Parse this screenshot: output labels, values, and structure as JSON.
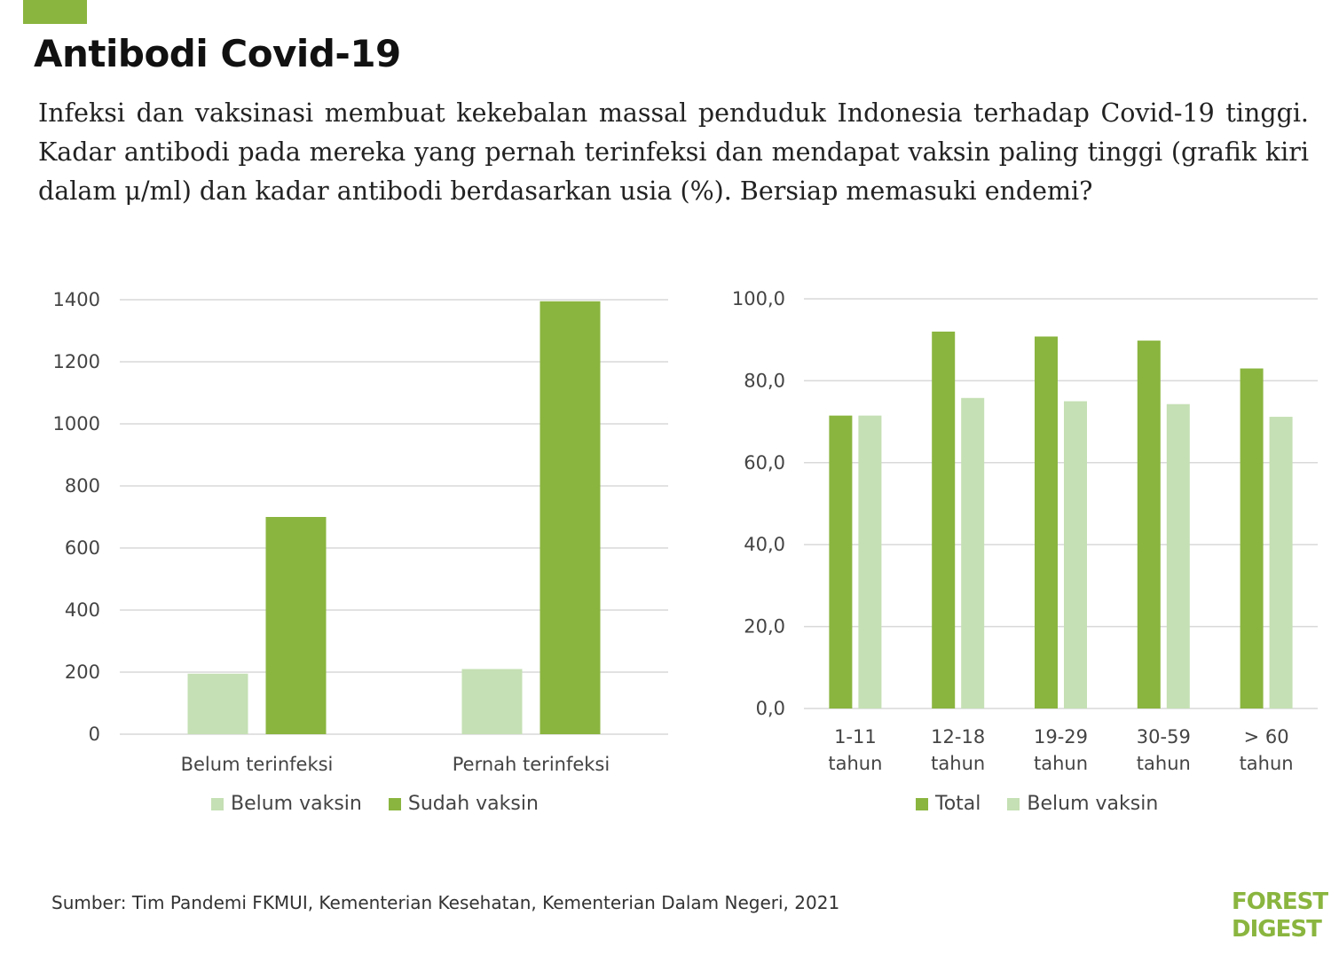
{
  "colors": {
    "accent": "#8ab53f",
    "light": "#c5e0b4",
    "dark": "#8ab53f",
    "grid": "#d9d9d9"
  },
  "header": {
    "title": "Antibodi Covid-19",
    "intro": "Infeksi dan vaksinasi membuat kekebalan massal penduduk Indonesia terhadap Covid-19 tinggi. Kadar antibodi pada mereka yang pernah terinfeksi dan mendapat vaksin paling tinggi (grafik kiri dalam μ/ml) dan kadar antibodi berdasarkan usia (%). Bersiap memasuki endemi?"
  },
  "chart_data": [
    {
      "type": "bar",
      "categories": [
        "Belum terinfeksi",
        "Pernah terinfeksi"
      ],
      "series": [
        {
          "name": "Belum vaksin",
          "color": "#c5e0b4",
          "values": [
            195,
            210
          ]
        },
        {
          "name": "Sudah vaksin",
          "color": "#8ab53f",
          "values": [
            700,
            1395
          ]
        }
      ],
      "ylim": [
        0,
        1400
      ],
      "yticks": [
        "0",
        "200",
        "400",
        "600",
        "800",
        "1000",
        "1200",
        "1400"
      ],
      "grid": true,
      "legend_position": "bottom"
    },
    {
      "type": "bar",
      "categories": [
        [
          "1-11",
          "tahun"
        ],
        [
          "12-18",
          "tahun"
        ],
        [
          "19-29",
          "tahun"
        ],
        [
          "30-59",
          "tahun"
        ],
        [
          "> 60",
          "tahun"
        ]
      ],
      "series": [
        {
          "name": "Total",
          "color": "#8ab53f",
          "values": [
            71.5,
            92.0,
            90.8,
            89.8,
            83.0
          ]
        },
        {
          "name": "Belum vaksin",
          "color": "#c5e0b4",
          "values": [
            71.5,
            75.8,
            75.0,
            74.3,
            71.2
          ]
        }
      ],
      "ylim": [
        0,
        100
      ],
      "yticks": [
        "0,0",
        "20,0",
        "40,0",
        "60,0",
        "80,0",
        "100,0"
      ],
      "grid": true,
      "legend_position": "bottom"
    }
  ],
  "footer": {
    "source": "Sumber: Tim Pandemi FKMUI, Kementerian Kesehatan,  Kementerian Dalam Negeri, 2021",
    "logo_line1": "FOREST",
    "logo_line2": "DIGEST"
  }
}
